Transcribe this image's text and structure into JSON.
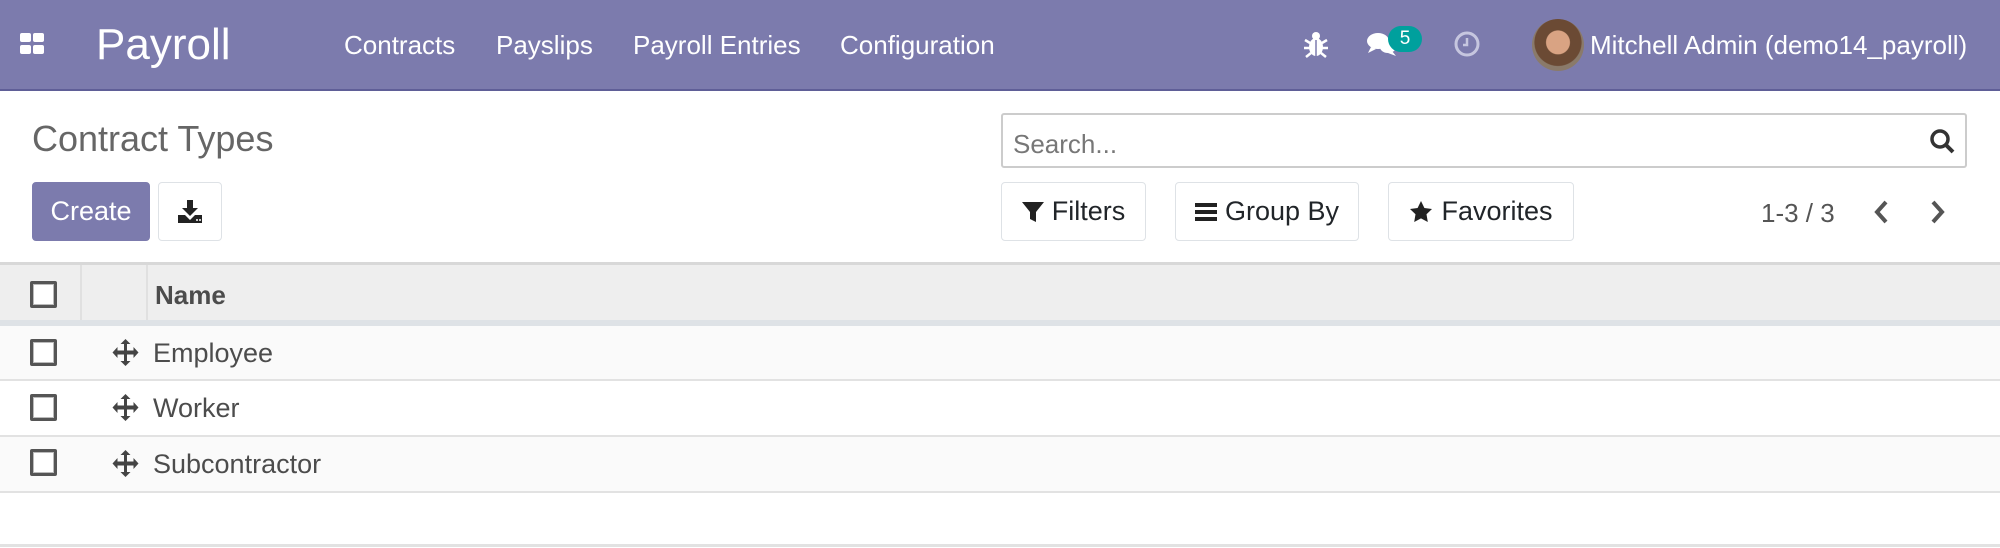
{
  "navbar": {
    "app_title": "Payroll",
    "menu": [
      "Contracts",
      "Payslips",
      "Payroll Entries",
      "Configuration"
    ],
    "message_count": "5",
    "user_name": "Mitchell Admin (demo14_payroll)",
    "colors": {
      "brand": "#7c7bad",
      "badge": "#00a09d"
    }
  },
  "control_panel": {
    "title": "Contract Types",
    "create_label": "Create",
    "search_placeholder": "Search...",
    "filters_label": "Filters",
    "group_by_label": "Group By",
    "favorites_label": "Favorites",
    "pager": "1-3 / 3"
  },
  "table": {
    "columns": [
      "Name"
    ],
    "rows": [
      {
        "name": "Employee"
      },
      {
        "name": "Worker"
      },
      {
        "name": "Subcontractor"
      }
    ]
  }
}
